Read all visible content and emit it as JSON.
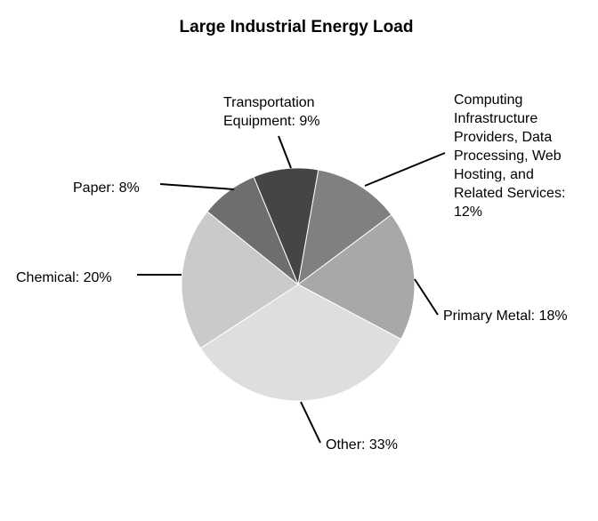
{
  "chart_data": {
    "type": "pie",
    "title": "Large Industrial Energy Load",
    "slices": [
      {
        "label": "Computing Infrastructure Providers, Data Processing, Web Hosting, and Related Services: 12%",
        "value": 12,
        "color": "#808080"
      },
      {
        "label": "Primary Metal: 18%",
        "value": 18,
        "color": "#a8a8a8"
      },
      {
        "label": "Other: 33%",
        "value": 33,
        "color": "#dedede"
      },
      {
        "label": "Chemical: 20%",
        "value": 20,
        "color": "#cacaca"
      },
      {
        "label": "Paper: 8%",
        "value": 8,
        "color": "#6e6e6e"
      },
      {
        "label": "Transportation Equipment: 9%",
        "value": 9,
        "color": "#454545"
      }
    ],
    "legend": "none",
    "grid": false
  }
}
